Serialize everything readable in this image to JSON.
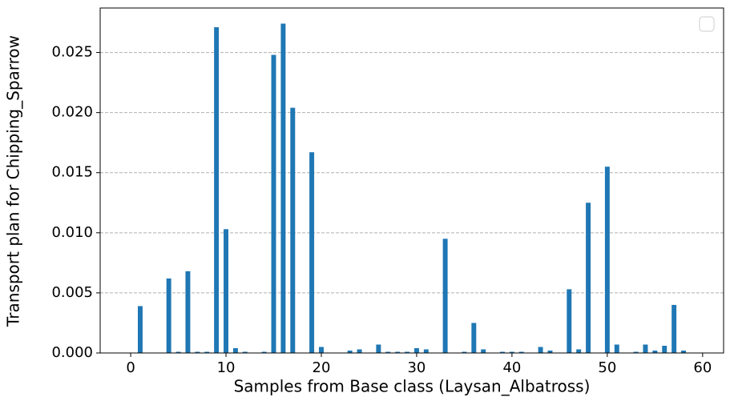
{
  "chart_data": {
    "type": "bar",
    "xlabel": "Samples from Base class (Laysan_Albatross)",
    "ylabel": "Transport plan for Chipping_Sparrow",
    "x": [
      1,
      4,
      5,
      6,
      7,
      8,
      9,
      10,
      11,
      12,
      14,
      15,
      16,
      17,
      19,
      20,
      23,
      24,
      26,
      27,
      28,
      29,
      30,
      31,
      33,
      35,
      36,
      37,
      39,
      40,
      41,
      43,
      44,
      46,
      47,
      48,
      50,
      51,
      53,
      54,
      55,
      56,
      57,
      58
    ],
    "values": [
      0.0039,
      0.0062,
      0.0001,
      0.0068,
      0.0001,
      0.0001,
      0.0271,
      0.0103,
      0.0004,
      0.0001,
      0.0001,
      0.0248,
      0.0274,
      0.0204,
      0.0167,
      0.0005,
      0.0002,
      0.0003,
      0.0007,
      0.0001,
      0.0001,
      0.0001,
      0.0004,
      0.0003,
      0.0095,
      0.0001,
      0.0025,
      0.0003,
      0.0001,
      0.0001,
      0.0001,
      0.0005,
      0.0002,
      0.0053,
      0.0003,
      0.0125,
      0.0155,
      0.0007,
      0.0001,
      0.0007,
      0.0002,
      0.0006,
      0.004,
      0.0002
    ],
    "color": "#1f77b4",
    "bar_width": 0.5,
    "xlim": [
      -3.2,
      62.2
    ],
    "xticks": [
      0,
      10,
      20,
      30,
      40,
      50,
      60
    ],
    "ylim": [
      0,
      0.0287
    ],
    "yticks": [
      {
        "value": 0,
        "label": "0.000"
      },
      {
        "value": 0.005,
        "label": "0.005"
      },
      {
        "value": 0.01,
        "label": "0.010"
      },
      {
        "value": 0.015,
        "label": "0.015"
      },
      {
        "value": 0.02,
        "label": "0.020"
      },
      {
        "value": 0.025,
        "label": "0.025"
      }
    ],
    "grid": true
  }
}
